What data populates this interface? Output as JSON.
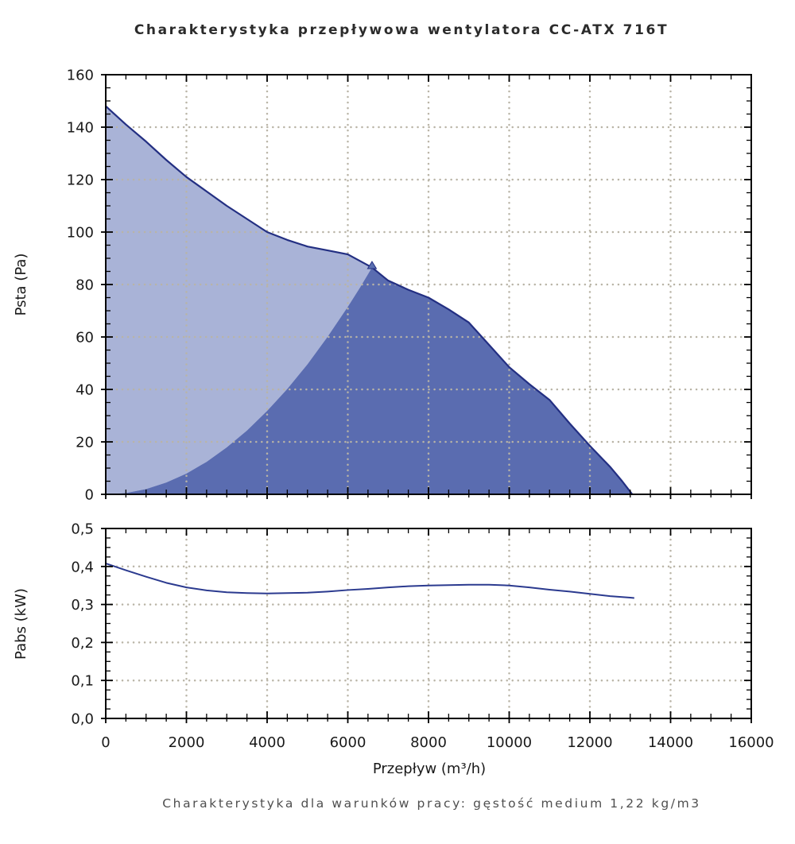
{
  "title": "Charakterystyka przepływowa wentylatora CC-ATX 716T",
  "caption": "Charakterystyka dla warunków pracy: gęstość medium 1,22 kg/m3",
  "xlabel": "Przepływ (m³/h)",
  "xtick_labels": [
    "0",
    "2000",
    "4000",
    "6000",
    "8000",
    "10000",
    "12000",
    "14000",
    "16000"
  ],
  "colors": {
    "fan_curve": "#232f82",
    "power_curve": "#2b3a8f",
    "region_light": "#a9b3d7",
    "region_dark": "#5a6cb0",
    "marker_fill": "#5a6fb0",
    "grid": "#b9b4a6",
    "frame": "#000000",
    "tick": "#000000",
    "title_text": "#2b2b2b",
    "caption_text": "#4f4f4f",
    "tick_text": "#1a1a1a"
  },
  "chart_data": [
    {
      "type": "area",
      "name": "static-pressure-plot",
      "ylabel": "Psta (Pa)",
      "xlim": [
        0,
        16000
      ],
      "ylim": [
        0,
        160
      ],
      "x_major_step": 2000,
      "x_minor_step": 500,
      "y_major_step": 20,
      "y_minor_step": 5,
      "ytick_labels": [
        "0",
        "20",
        "40",
        "60",
        "80",
        "100",
        "120",
        "140",
        "160"
      ],
      "grid": "dotted",
      "legend": "none",
      "series": [
        {
          "name": "fan_pressure_curve",
          "x": [
            0,
            500,
            1000,
            1500,
            2000,
            2500,
            3000,
            3500,
            4000,
            4500,
            5000,
            5500,
            6000,
            6600,
            7000,
            7500,
            8000,
            8500,
            9000,
            9500,
            10000,
            10500,
            11000,
            11500,
            12000,
            12500,
            12800,
            13000,
            13050
          ],
          "y": [
            148,
            141,
            134.5,
            127.5,
            121,
            115.5,
            110,
            105,
            100,
            97,
            94.5,
            93,
            91.5,
            86.5,
            81.5,
            78,
            75,
            70.5,
            65.5,
            57,
            48.5,
            42,
            36,
            27,
            18.5,
            10.5,
            5,
            1,
            0
          ]
        },
        {
          "name": "region_boundary_parabola",
          "x": [
            0,
            500,
            1000,
            1500,
            2000,
            2500,
            3000,
            3500,
            4000,
            4500,
            5000,
            5500,
            6000,
            6300,
            6600
          ],
          "y": [
            0,
            0.5,
            2,
            4.5,
            7.9,
            12.4,
            17.9,
            24.3,
            31.8,
            40.2,
            49.6,
            60.1,
            71.5,
            78.8,
            86.5
          ]
        }
      ],
      "regions": [
        {
          "name": "operating-region-left",
          "color_key": "region_light",
          "bounds": "under fan curve, left of boundary parabola, flow 0-6600"
        },
        {
          "name": "operating-region-right",
          "color_key": "region_dark",
          "bounds": "under boundary parabola then fan curve, flow 0-13050"
        }
      ],
      "operating_point": {
        "x": 6600,
        "y": 86.5,
        "marker": "triangle-up"
      }
    },
    {
      "type": "line",
      "name": "absorbed-power-plot",
      "ylabel": "Pabs (kW)",
      "xlim": [
        0,
        16000
      ],
      "ylim": [
        0,
        0.5
      ],
      "x_major_step": 2000,
      "x_minor_step": 500,
      "y_major_step": 0.1,
      "y_minor_step": 0.025,
      "ytick_labels": [
        "0,0",
        "0,1",
        "0,2",
        "0,3",
        "0,4",
        "0,5"
      ],
      "grid": "dotted",
      "legend": "none",
      "series": [
        {
          "name": "power_curve",
          "x": [
            0,
            500,
            1000,
            1500,
            2000,
            2500,
            3000,
            3500,
            4000,
            4500,
            5000,
            5500,
            6000,
            6500,
            7000,
            7500,
            8000,
            8500,
            9000,
            9500,
            10000,
            10500,
            11000,
            11500,
            12000,
            12500,
            13000,
            13100
          ],
          "y": [
            0.408,
            0.39,
            0.373,
            0.357,
            0.345,
            0.337,
            0.332,
            0.33,
            0.329,
            0.33,
            0.331,
            0.334,
            0.338,
            0.341,
            0.345,
            0.348,
            0.35,
            0.351,
            0.352,
            0.352,
            0.35,
            0.345,
            0.339,
            0.334,
            0.328,
            0.322,
            0.318,
            0.317
          ]
        }
      ]
    }
  ]
}
